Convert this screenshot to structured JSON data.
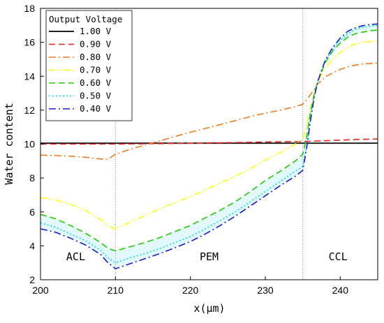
{
  "chart_data": {
    "type": "line",
    "title": "",
    "xlabel": "x(μm)",
    "ylabel": "Water content",
    "xlim": [
      200,
      245
    ],
    "ylim": [
      2,
      18
    ],
    "xticks": [
      200,
      210,
      220,
      230,
      240
    ],
    "yticks": [
      2,
      4,
      6,
      8,
      10,
      12,
      14,
      16,
      18
    ],
    "grid": false,
    "legend": {
      "title": "Output Voltage",
      "placement": "top-left"
    },
    "boundaries": [
      210,
      235
    ],
    "regions": [
      {
        "label": "ACL",
        "x": 204.7,
        "y": 3.15
      },
      {
        "label": "PEM",
        "x": 222.5,
        "y": 3.15
      },
      {
        "label": "CCL",
        "x": 239.7,
        "y": 3.15
      }
    ],
    "series": [
      {
        "name": "1.00 V",
        "color": "#000000",
        "dash": "solid",
        "x": [
          200,
          210,
          220,
          230,
          235,
          240,
          245
        ],
        "y": [
          10.05,
          10.05,
          10.05,
          10.05,
          10.05,
          10.05,
          10.05
        ]
      },
      {
        "name": "0.90 V",
        "color": "#e8221b",
        "dash": "dash",
        "x": [
          200,
          205,
          210,
          215,
          220,
          225,
          230,
          235,
          238,
          241,
          243,
          245
        ],
        "y": [
          10.0,
          10.0,
          10.0,
          10.02,
          10.05,
          10.08,
          10.12,
          10.15,
          10.2,
          10.25,
          10.28,
          10.3
        ]
      },
      {
        "name": "0.80 V",
        "color": "#ef7c1e",
        "dash": "dashdot",
        "x": [
          200,
          202,
          204,
          206,
          208,
          209,
          210,
          212,
          214,
          216,
          218,
          220,
          222,
          224,
          226,
          228,
          230,
          232,
          234,
          235,
          235.5,
          236,
          236.5,
          237,
          238,
          239,
          240,
          241,
          242,
          243,
          244,
          245
        ],
        "y": [
          9.35,
          9.32,
          9.28,
          9.22,
          9.12,
          9.1,
          9.4,
          9.7,
          9.95,
          10.2,
          10.45,
          10.7,
          10.92,
          11.15,
          11.38,
          11.62,
          11.82,
          12.0,
          12.2,
          12.35,
          12.6,
          12.9,
          13.2,
          13.55,
          13.95,
          14.2,
          14.4,
          14.55,
          14.65,
          14.72,
          14.75,
          14.78
        ]
      },
      {
        "name": "0.70 V",
        "color": "#ffff00",
        "dash": "dashdotdot",
        "x": [
          200,
          202,
          204,
          206,
          208,
          209,
          210,
          212,
          214,
          216,
          218,
          220,
          222,
          224,
          226,
          228,
          230,
          232,
          234,
          235,
          235.5,
          236,
          236.5,
          237,
          238,
          239,
          240,
          241,
          242,
          243,
          244,
          245
        ],
        "y": [
          6.85,
          6.7,
          6.45,
          6.1,
          5.55,
          5.15,
          5.0,
          5.4,
          5.8,
          6.2,
          6.55,
          6.9,
          7.3,
          7.7,
          8.1,
          8.55,
          9.05,
          9.5,
          10.0,
          10.3,
          11.0,
          12.0,
          13.0,
          13.7,
          14.5,
          15.0,
          15.4,
          15.7,
          15.9,
          16.0,
          16.05,
          16.1
        ]
      },
      {
        "name": "0.60 V",
        "color": "#22cc00",
        "dash": "dash",
        "x": [
          200,
          202,
          204,
          206,
          208,
          209,
          210,
          212,
          214,
          216,
          218,
          220,
          222,
          224,
          226,
          228,
          230,
          232,
          234,
          235,
          235.5,
          236,
          236.5,
          237,
          238,
          239,
          240,
          241,
          242,
          243,
          244,
          245
        ],
        "y": [
          5.85,
          5.6,
          5.2,
          4.75,
          4.2,
          3.85,
          3.7,
          3.95,
          4.2,
          4.5,
          4.85,
          5.2,
          5.65,
          6.1,
          6.6,
          7.2,
          7.85,
          8.4,
          9.0,
          9.4,
          10.4,
          11.8,
          12.9,
          13.7,
          14.8,
          15.5,
          15.95,
          16.3,
          16.5,
          16.6,
          16.68,
          16.72
        ]
      },
      {
        "name": "0.50 V",
        "color": "#00e0e8",
        "dash": "dot",
        "x": [
          200,
          202,
          204,
          206,
          208,
          209,
          210,
          212,
          214,
          216,
          218,
          220,
          222,
          224,
          226,
          228,
          230,
          232,
          234,
          235,
          235.5,
          236,
          236.5,
          237,
          238,
          239,
          240,
          241,
          242,
          243,
          244,
          245
        ],
        "y": [
          5.35,
          5.1,
          4.7,
          4.3,
          3.75,
          3.3,
          3.0,
          3.3,
          3.55,
          3.85,
          4.2,
          4.55,
          5.0,
          5.5,
          6.0,
          6.6,
          7.2,
          7.8,
          8.4,
          8.7,
          9.9,
          11.5,
          12.8,
          13.7,
          14.9,
          15.6,
          16.1,
          16.5,
          16.75,
          16.88,
          16.95,
          17.0
        ]
      },
      {
        "name": "0.40 V",
        "color": "#1a1acc",
        "dash": "dashdot",
        "x": [
          200,
          202,
          204,
          206,
          208,
          209,
          210,
          212,
          214,
          216,
          218,
          220,
          222,
          224,
          226,
          228,
          230,
          232,
          234,
          235,
          235.5,
          236,
          236.5,
          237,
          238,
          239,
          240,
          241,
          242,
          243,
          244,
          245
        ],
        "y": [
          5.0,
          4.8,
          4.45,
          4.05,
          3.5,
          3.0,
          2.65,
          2.95,
          3.25,
          3.55,
          3.9,
          4.25,
          4.7,
          5.2,
          5.75,
          6.35,
          6.95,
          7.55,
          8.1,
          8.45,
          9.7,
          11.3,
          12.7,
          13.7,
          14.95,
          15.7,
          16.25,
          16.65,
          16.85,
          16.98,
          17.05,
          17.08
        ]
      }
    ]
  }
}
